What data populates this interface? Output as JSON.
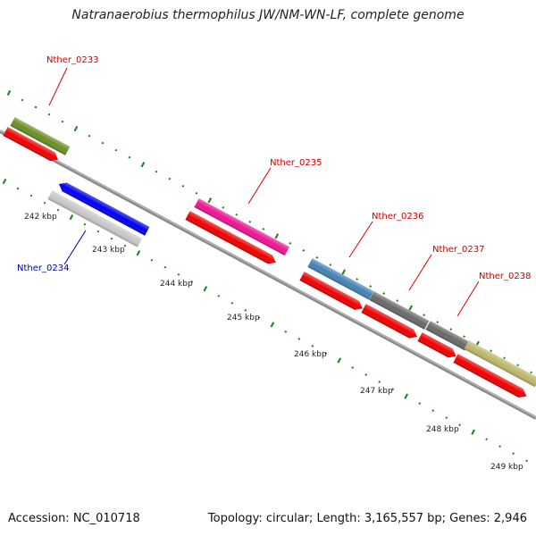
{
  "title": "Natranaerobius thermophilus JW/NM-WN-LF, complete genome",
  "footer": {
    "accession": "Accession: NC_010718",
    "summary": "Topology: circular; Length: 3,165,557 bp; Genes: 2,946"
  },
  "genes": [
    {
      "id": "Nther_0233",
      "color": "#e00000"
    },
    {
      "id": "Nther_0234",
      "color": "#0000aa"
    },
    {
      "id": "Nther_0235",
      "color": "#e00000"
    },
    {
      "id": "Nther_0236",
      "color": "#e00000"
    },
    {
      "id": "Nther_0237",
      "color": "#e00000"
    },
    {
      "id": "Nther_0238",
      "color": "#e00000"
    }
  ],
  "ticks": [
    "242 kbp",
    "243 kbp",
    "244 kbp",
    "245 kbp",
    "246 kbp",
    "247 kbp",
    "248 kbp",
    "249 kbp"
  ],
  "colors": {
    "cds_red": "#ee0000",
    "olive": "#6b8e23",
    "blue": "#0000ee",
    "silver": "#c8c8c8",
    "magenta": "#ee1493",
    "steelblue": "#4682b4",
    "gray": "#696969",
    "khaki": "#bdb76b",
    "backbone": "#808080",
    "tick_green": "#1a7f1a"
  }
}
